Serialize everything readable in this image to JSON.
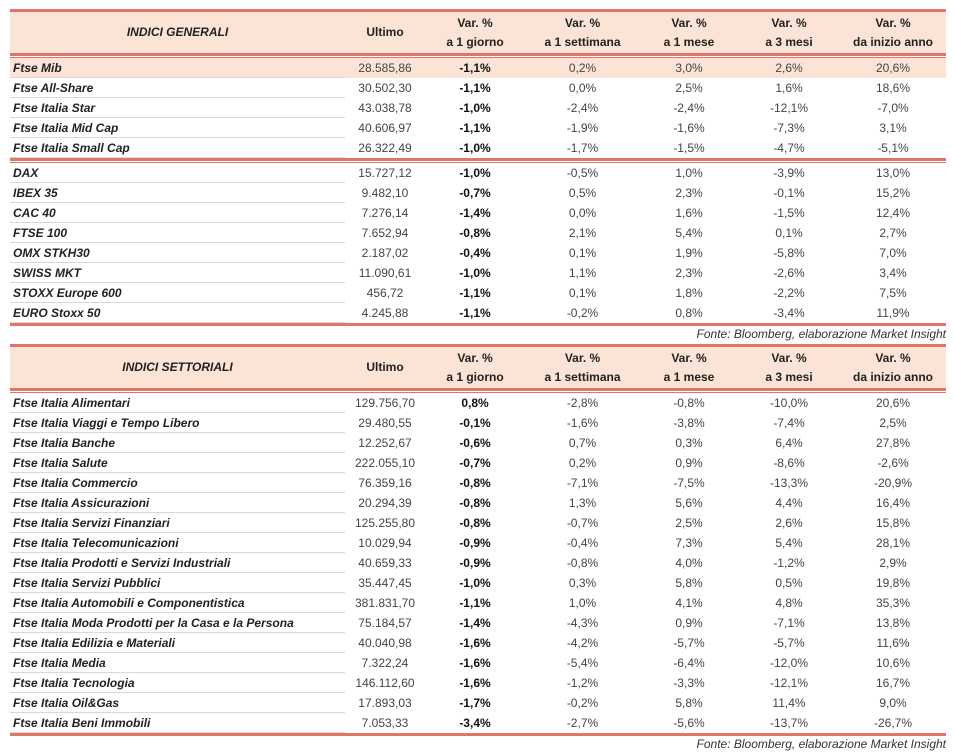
{
  "colors": {
    "accent": "#e0766a",
    "header_bg": "#fbe4d5"
  },
  "headers": {
    "ultimo": "Ultimo",
    "var": "Var. %",
    "d1": "a 1 giorno",
    "w1": "a 1 settimana",
    "m1": "a 1 mese",
    "m3": "a 3 mesi",
    "ytd": "da inizio anno"
  },
  "general": {
    "title": "INDICI GENERALI",
    "groups": [
      [
        [
          "Ftse Mib",
          "28.585,86",
          "-1,1%",
          "0,2%",
          "3,0%",
          "2,6%",
          "20,6%"
        ],
        [
          "Ftse All-Share",
          "30.502,30",
          "-1,1%",
          "0,0%",
          "2,5%",
          "1,6%",
          "18,6%"
        ],
        [
          "Ftse Italia Star",
          "43.038,78",
          "-1,0%",
          "-2,4%",
          "-2,4%",
          "-12,1%",
          "-7,0%"
        ],
        [
          "Ftse Italia Mid Cap",
          "40.606,97",
          "-1,1%",
          "-1,9%",
          "-1,6%",
          "-7,3%",
          "3,1%"
        ],
        [
          "Ftse Italia Small Cap",
          "26.322,49",
          "-1,0%",
          "-1,7%",
          "-1,5%",
          "-4,7%",
          "-5,1%"
        ]
      ],
      [
        [
          "DAX",
          "15.727,12",
          "-1,0%",
          "-0,5%",
          "1,0%",
          "-3,9%",
          "13,0%"
        ],
        [
          "IBEX 35",
          "9.482,10",
          "-0,7%",
          "0,5%",
          "2,3%",
          "-0,1%",
          "15,2%"
        ],
        [
          "CAC 40",
          "7.276,14",
          "-1,4%",
          "0,0%",
          "1,6%",
          "-1,5%",
          "12,4%"
        ],
        [
          "FTSE 100",
          "7.652,94",
          "-0,8%",
          "2,1%",
          "5,4%",
          "0,1%",
          "2,7%"
        ],
        [
          "OMX STKH30",
          "2.187,02",
          "-0,4%",
          "0,1%",
          "1,9%",
          "-5,8%",
          "7,0%"
        ],
        [
          "SWISS MKT",
          "11.090,61",
          "-1,0%",
          "1,1%",
          "2,3%",
          "-2,6%",
          "3,4%"
        ],
        [
          "STOXX Europe 600",
          "456,72",
          "-1,1%",
          "0,1%",
          "1,8%",
          "-2,2%",
          "7,5%"
        ],
        [
          "EURO Stoxx 50",
          "4.245,88",
          "-1,1%",
          "-0,2%",
          "0,8%",
          "-3,4%",
          "11,9%"
        ]
      ]
    ],
    "source": "Fonte: Bloomberg, elaborazione Market Insight"
  },
  "sector": {
    "title": "INDICI SETTORIALI",
    "groups": [
      [
        [
          "Ftse Italia Alimentari",
          "129.756,70",
          "0,8%",
          "-2,8%",
          "-0,8%",
          "-10,0%",
          "20,6%"
        ],
        [
          "Ftse Italia Viaggi e Tempo Libero",
          "29.480,55",
          "-0,1%",
          "-1,6%",
          "-3,8%",
          "-7,4%",
          "2,5%"
        ],
        [
          "Ftse Italia Banche",
          "12.252,67",
          "-0,6%",
          "0,7%",
          "0,3%",
          "6,4%",
          "27,8%"
        ],
        [
          "Ftse Italia Salute",
          "222.055,10",
          "-0,7%",
          "0,2%",
          "0,9%",
          "-8,6%",
          "-2,6%"
        ],
        [
          "Ftse Italia Commercio",
          "76.359,16",
          "-0,8%",
          "-7,1%",
          "-7,5%",
          "-13,3%",
          "-20,9%"
        ],
        [
          "Ftse Italia Assicurazioni",
          "20.294,39",
          "-0,8%",
          "1,3%",
          "5,6%",
          "4,4%",
          "16,4%"
        ],
        [
          "Ftse Italia Servizi Finanziari",
          "125.255,80",
          "-0,8%",
          "-0,7%",
          "2,5%",
          "2,6%",
          "15,8%"
        ],
        [
          "Ftse Italia Telecomunicazioni",
          "10.029,94",
          "-0,9%",
          "-0,4%",
          "7,3%",
          "5,4%",
          "28,1%"
        ],
        [
          "Ftse Italia Prodotti e Servizi Industriali",
          "40.659,33",
          "-0,9%",
          "-0,8%",
          "4,0%",
          "-1,2%",
          "2,9%"
        ],
        [
          "Ftse Italia Servizi Pubblici",
          "35.447,45",
          "-1,0%",
          "0,3%",
          "5,8%",
          "0,5%",
          "19,8%"
        ],
        [
          "Ftse Italia Automobili e Componentistica",
          "381.831,70",
          "-1,1%",
          "1,0%",
          "4,1%",
          "4,8%",
          "35,3%"
        ],
        [
          "Ftse Italia Moda Prodotti per la Casa e la Persona",
          "75.184,57",
          "-1,4%",
          "-4,3%",
          "0,9%",
          "-7,1%",
          "13,8%"
        ],
        [
          "Ftse Italia Edilizia e Materiali",
          "40.040,98",
          "-1,6%",
          "-4,2%",
          "-5,7%",
          "-5,7%",
          "11,6%"
        ],
        [
          "Ftse Italia Media",
          "7.322,24",
          "-1,6%",
          "-5,4%",
          "-6,4%",
          "-12,0%",
          "10,6%"
        ],
        [
          "Ftse Italia Tecnologia",
          "146.112,60",
          "-1,6%",
          "-1,2%",
          "-3,3%",
          "-12,1%",
          "16,7%"
        ],
        [
          "Ftse Italia Oil&Gas",
          "17.893,03",
          "-1,7%",
          "-0,2%",
          "5,8%",
          "11,4%",
          "9,0%"
        ],
        [
          "Ftse Italia Beni Immobili",
          "7.053,33",
          "-3,4%",
          "-2,7%",
          "-5,6%",
          "-13,7%",
          "-26,7%"
        ]
      ]
    ],
    "source": "Fonte: Bloomberg, elaborazione Market Insight"
  }
}
